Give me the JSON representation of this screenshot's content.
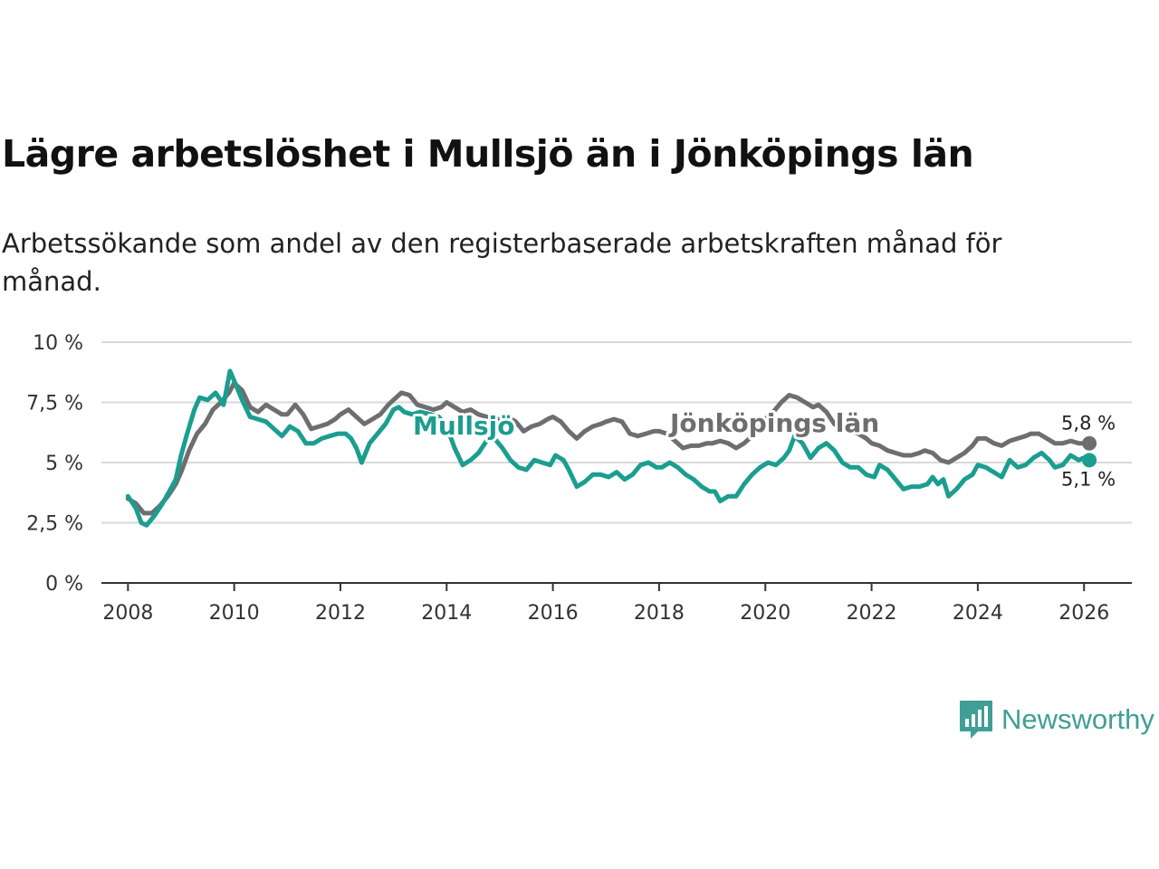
{
  "title": "Lägre arbetslöshet i Mullsjö än i Jönköpings län",
  "subtitle": "Arbetssökande som andel av den registerbaserade arbetskraften månad för månad.",
  "brand": {
    "name": "Newsworthy",
    "icon": "bar-chart-speech-bubble-icon",
    "color": "#3f9e95"
  },
  "chart_data": {
    "type": "line",
    "title": "Lägre arbetslöshet i Mullsjö än i Jönköpings län",
    "xlabel": "",
    "ylabel": "",
    "xlim": [
      2007.5,
      2026.9
    ],
    "ylim": [
      0,
      10
    ],
    "grid": true,
    "y_ticks": [
      {
        "value": 0,
        "label": "0 %"
      },
      {
        "value": 2.5,
        "label": "2,5 %"
      },
      {
        "value": 5,
        "label": "5 %"
      },
      {
        "value": 7.5,
        "label": "7,5 %"
      },
      {
        "value": 10,
        "label": "10 %"
      }
    ],
    "x_ticks": [
      {
        "value": 2008,
        "label": "2008"
      },
      {
        "value": 2010,
        "label": "2010"
      },
      {
        "value": 2012,
        "label": "2012"
      },
      {
        "value": 2014,
        "label": "2014"
      },
      {
        "value": 2016,
        "label": "2016"
      },
      {
        "value": 2018,
        "label": "2018"
      },
      {
        "value": 2020,
        "label": "2020"
      },
      {
        "value": 2022,
        "label": "2022"
      },
      {
        "value": 2024,
        "label": "2024"
      },
      {
        "value": 2026,
        "label": "2026"
      }
    ],
    "series": [
      {
        "name": "Jönköpings län",
        "label": "Jönköpings län",
        "color": "#6e6e70",
        "end_label": "5,8 %",
        "points": [
          [
            2008.0,
            3.5
          ],
          [
            2008.15,
            3.3
          ],
          [
            2008.3,
            2.9
          ],
          [
            2008.45,
            2.9
          ],
          [
            2008.6,
            3.2
          ],
          [
            2008.75,
            3.6
          ],
          [
            2008.9,
            4.1
          ],
          [
            2009.0,
            4.6
          ],
          [
            2009.15,
            5.5
          ],
          [
            2009.3,
            6.2
          ],
          [
            2009.45,
            6.6
          ],
          [
            2009.6,
            7.2
          ],
          [
            2009.75,
            7.5
          ],
          [
            2009.9,
            7.9
          ],
          [
            2010.0,
            8.3
          ],
          [
            2010.15,
            8.0
          ],
          [
            2010.3,
            7.3
          ],
          [
            2010.45,
            7.1
          ],
          [
            2010.6,
            7.4
          ],
          [
            2010.75,
            7.2
          ],
          [
            2010.9,
            7.0
          ],
          [
            2011.0,
            7.0
          ],
          [
            2011.15,
            7.4
          ],
          [
            2011.3,
            7.0
          ],
          [
            2011.45,
            6.4
          ],
          [
            2011.6,
            6.5
          ],
          [
            2011.75,
            6.6
          ],
          [
            2011.9,
            6.8
          ],
          [
            2012.0,
            7.0
          ],
          [
            2012.15,
            7.2
          ],
          [
            2012.3,
            6.9
          ],
          [
            2012.45,
            6.6
          ],
          [
            2012.6,
            6.8
          ],
          [
            2012.75,
            7.0
          ],
          [
            2012.9,
            7.4
          ],
          [
            2013.0,
            7.6
          ],
          [
            2013.15,
            7.9
          ],
          [
            2013.3,
            7.8
          ],
          [
            2013.45,
            7.4
          ],
          [
            2013.6,
            7.3
          ],
          [
            2013.75,
            7.2
          ],
          [
            2013.9,
            7.3
          ],
          [
            2014.0,
            7.5
          ],
          [
            2014.15,
            7.3
          ],
          [
            2014.3,
            7.1
          ],
          [
            2014.45,
            7.2
          ],
          [
            2014.6,
            7.0
          ],
          [
            2014.75,
            6.9
          ],
          [
            2014.9,
            6.8
          ],
          [
            2015.0,
            6.8
          ],
          [
            2015.15,
            6.9
          ],
          [
            2015.3,
            6.7
          ],
          [
            2015.45,
            6.3
          ],
          [
            2015.6,
            6.5
          ],
          [
            2015.75,
            6.6
          ],
          [
            2015.9,
            6.8
          ],
          [
            2016.0,
            6.9
          ],
          [
            2016.15,
            6.7
          ],
          [
            2016.3,
            6.3
          ],
          [
            2016.45,
            6.0
          ],
          [
            2016.6,
            6.3
          ],
          [
            2016.75,
            6.5
          ],
          [
            2016.9,
            6.6
          ],
          [
            2017.0,
            6.7
          ],
          [
            2017.15,
            6.8
          ],
          [
            2017.3,
            6.7
          ],
          [
            2017.45,
            6.2
          ],
          [
            2017.6,
            6.1
          ],
          [
            2017.75,
            6.2
          ],
          [
            2017.9,
            6.3
          ],
          [
            2018.0,
            6.3
          ],
          [
            2018.15,
            6.2
          ],
          [
            2018.3,
            5.9
          ],
          [
            2018.45,
            5.6
          ],
          [
            2018.6,
            5.7
          ],
          [
            2018.75,
            5.7
          ],
          [
            2018.9,
            5.8
          ],
          [
            2019.0,
            5.8
          ],
          [
            2019.15,
            5.9
          ],
          [
            2019.3,
            5.8
          ],
          [
            2019.45,
            5.6
          ],
          [
            2019.6,
            5.8
          ],
          [
            2019.75,
            6.1
          ],
          [
            2019.9,
            6.5
          ],
          [
            2020.0,
            6.8
          ],
          [
            2020.15,
            7.1
          ],
          [
            2020.3,
            7.5
          ],
          [
            2020.45,
            7.8
          ],
          [
            2020.6,
            7.7
          ],
          [
            2020.75,
            7.5
          ],
          [
            2020.9,
            7.3
          ],
          [
            2021.0,
            7.4
          ],
          [
            2021.15,
            7.1
          ],
          [
            2021.3,
            6.6
          ],
          [
            2021.45,
            6.4
          ],
          [
            2021.6,
            6.3
          ],
          [
            2021.75,
            6.2
          ],
          [
            2021.9,
            6.0
          ],
          [
            2022.0,
            5.8
          ],
          [
            2022.15,
            5.7
          ],
          [
            2022.3,
            5.5
          ],
          [
            2022.45,
            5.4
          ],
          [
            2022.6,
            5.3
          ],
          [
            2022.75,
            5.3
          ],
          [
            2022.9,
            5.4
          ],
          [
            2023.0,
            5.5
          ],
          [
            2023.15,
            5.4
          ],
          [
            2023.3,
            5.1
          ],
          [
            2023.45,
            5.0
          ],
          [
            2023.6,
            5.2
          ],
          [
            2023.75,
            5.4
          ],
          [
            2023.9,
            5.7
          ],
          [
            2024.0,
            6.0
          ],
          [
            2024.15,
            6.0
          ],
          [
            2024.3,
            5.8
          ],
          [
            2024.45,
            5.7
          ],
          [
            2024.6,
            5.9
          ],
          [
            2024.75,
            6.0
          ],
          [
            2024.9,
            6.1
          ],
          [
            2025.0,
            6.2
          ],
          [
            2025.15,
            6.2
          ],
          [
            2025.3,
            6.0
          ],
          [
            2025.45,
            5.8
          ],
          [
            2025.6,
            5.8
          ],
          [
            2025.75,
            5.9
          ],
          [
            2025.9,
            5.8
          ],
          [
            2026.0,
            5.8
          ],
          [
            2026.1,
            5.8
          ]
        ]
      },
      {
        "name": "Mullsjö",
        "label": "Mullsjö",
        "color": "#1b9e8f",
        "end_label": "5,1 %",
        "points": [
          [
            2008.0,
            3.6
          ],
          [
            2008.15,
            3.1
          ],
          [
            2008.25,
            2.5
          ],
          [
            2008.35,
            2.4
          ],
          [
            2008.5,
            2.8
          ],
          [
            2008.65,
            3.3
          ],
          [
            2008.8,
            3.9
          ],
          [
            2008.9,
            4.3
          ],
          [
            2009.0,
            5.3
          ],
          [
            2009.1,
            6.1
          ],
          [
            2009.25,
            7.2
          ],
          [
            2009.35,
            7.7
          ],
          [
            2009.5,
            7.6
          ],
          [
            2009.65,
            7.9
          ],
          [
            2009.8,
            7.4
          ],
          [
            2009.92,
            8.8
          ],
          [
            2010.0,
            8.4
          ],
          [
            2010.15,
            7.6
          ],
          [
            2010.3,
            6.9
          ],
          [
            2010.45,
            6.8
          ],
          [
            2010.6,
            6.7
          ],
          [
            2010.75,
            6.4
          ],
          [
            2010.9,
            6.1
          ],
          [
            2011.05,
            6.5
          ],
          [
            2011.2,
            6.3
          ],
          [
            2011.35,
            5.8
          ],
          [
            2011.5,
            5.8
          ],
          [
            2011.65,
            6.0
          ],
          [
            2011.8,
            6.1
          ],
          [
            2011.95,
            6.2
          ],
          [
            2012.1,
            6.2
          ],
          [
            2012.2,
            6.0
          ],
          [
            2012.3,
            5.6
          ],
          [
            2012.4,
            5.0
          ],
          [
            2012.55,
            5.8
          ],
          [
            2012.7,
            6.2
          ],
          [
            2012.85,
            6.6
          ],
          [
            2013.0,
            7.2
          ],
          [
            2013.1,
            7.3
          ],
          [
            2013.2,
            7.1
          ],
          [
            2013.35,
            7.0
          ],
          [
            2013.5,
            7.1
          ],
          [
            2013.7,
            7.0
          ],
          [
            2013.85,
            6.9
          ],
          [
            2014.0,
            6.5
          ],
          [
            2014.15,
            5.6
          ],
          [
            2014.3,
            4.9
          ],
          [
            2014.45,
            5.1
          ],
          [
            2014.6,
            5.4
          ],
          [
            2014.75,
            5.9
          ],
          [
            2014.9,
            6.0
          ],
          [
            2015.05,
            5.6
          ],
          [
            2015.2,
            5.1
          ],
          [
            2015.35,
            4.8
          ],
          [
            2015.5,
            4.7
          ],
          [
            2015.65,
            5.1
          ],
          [
            2015.8,
            5.0
          ],
          [
            2015.95,
            4.9
          ],
          [
            2016.05,
            5.3
          ],
          [
            2016.2,
            5.1
          ],
          [
            2016.3,
            4.7
          ],
          [
            2016.45,
            4.0
          ],
          [
            2016.6,
            4.2
          ],
          [
            2016.75,
            4.5
          ],
          [
            2016.9,
            4.5
          ],
          [
            2017.05,
            4.4
          ],
          [
            2017.2,
            4.6
          ],
          [
            2017.35,
            4.3
          ],
          [
            2017.5,
            4.5
          ],
          [
            2017.65,
            4.9
          ],
          [
            2017.8,
            5.0
          ],
          [
            2017.95,
            4.8
          ],
          [
            2018.05,
            4.8
          ],
          [
            2018.2,
            5.0
          ],
          [
            2018.35,
            4.8
          ],
          [
            2018.5,
            4.5
          ],
          [
            2018.65,
            4.3
          ],
          [
            2018.8,
            4.0
          ],
          [
            2018.95,
            3.8
          ],
          [
            2019.05,
            3.8
          ],
          [
            2019.15,
            3.4
          ],
          [
            2019.3,
            3.6
          ],
          [
            2019.45,
            3.6
          ],
          [
            2019.6,
            4.1
          ],
          [
            2019.75,
            4.5
          ],
          [
            2019.9,
            4.8
          ],
          [
            2020.05,
            5.0
          ],
          [
            2020.2,
            4.9
          ],
          [
            2020.35,
            5.2
          ],
          [
            2020.45,
            5.5
          ],
          [
            2020.55,
            6.1
          ],
          [
            2020.7,
            5.8
          ],
          [
            2020.85,
            5.2
          ],
          [
            2021.0,
            5.6
          ],
          [
            2021.15,
            5.8
          ],
          [
            2021.3,
            5.5
          ],
          [
            2021.45,
            5.0
          ],
          [
            2021.6,
            4.8
          ],
          [
            2021.75,
            4.8
          ],
          [
            2021.9,
            4.5
          ],
          [
            2022.05,
            4.4
          ],
          [
            2022.15,
            4.9
          ],
          [
            2022.3,
            4.7
          ],
          [
            2022.45,
            4.3
          ],
          [
            2022.6,
            3.9
          ],
          [
            2022.75,
            4.0
          ],
          [
            2022.9,
            4.0
          ],
          [
            2023.05,
            4.1
          ],
          [
            2023.15,
            4.4
          ],
          [
            2023.25,
            4.1
          ],
          [
            2023.35,
            4.3
          ],
          [
            2023.45,
            3.6
          ],
          [
            2023.6,
            3.9
          ],
          [
            2023.75,
            4.3
          ],
          [
            2023.9,
            4.5
          ],
          [
            2024.0,
            4.9
          ],
          [
            2024.15,
            4.8
          ],
          [
            2024.3,
            4.6
          ],
          [
            2024.45,
            4.4
          ],
          [
            2024.6,
            5.1
          ],
          [
            2024.75,
            4.8
          ],
          [
            2024.9,
            4.9
          ],
          [
            2025.05,
            5.2
          ],
          [
            2025.2,
            5.4
          ],
          [
            2025.35,
            5.1
          ],
          [
            2025.45,
            4.8
          ],
          [
            2025.6,
            4.9
          ],
          [
            2025.75,
            5.3
          ],
          [
            2025.9,
            5.1
          ],
          [
            2026.0,
            5.2
          ],
          [
            2026.1,
            5.1
          ]
        ]
      }
    ]
  }
}
